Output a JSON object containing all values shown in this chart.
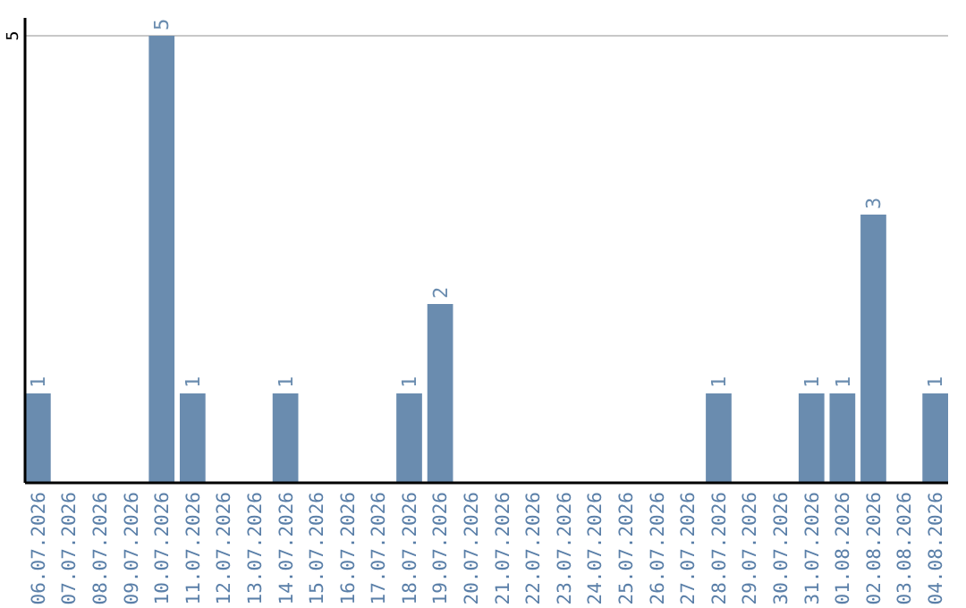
{
  "chart_data": {
    "type": "bar",
    "categories": [
      "06.07.2026",
      "07.07.2026",
      "08.07.2026",
      "09.07.2026",
      "10.07.2026",
      "11.07.2026",
      "12.07.2026",
      "13.07.2026",
      "14.07.2026",
      "15.07.2026",
      "16.07.2026",
      "17.07.2026",
      "18.07.2026",
      "19.07.2026",
      "20.07.2026",
      "21.07.2026",
      "22.07.2026",
      "23.07.2026",
      "24.07.2026",
      "25.07.2026",
      "26.07.2026",
      "27.07.2026",
      "28.07.2026",
      "29.07.2026",
      "30.07.2026",
      "31.07.2026",
      "01.08.2026",
      "02.08.2026",
      "03.08.2026",
      "04.08.2026"
    ],
    "values": [
      1,
      0,
      0,
      0,
      5,
      1,
      0,
      0,
      1,
      0,
      0,
      0,
      1,
      2,
      0,
      0,
      0,
      0,
      0,
      0,
      0,
      0,
      1,
      0,
      0,
      1,
      1,
      3,
      0,
      1
    ],
    "value_labels": [
      "1",
      null,
      null,
      null,
      "5",
      "1",
      null,
      null,
      "1",
      null,
      null,
      null,
      "1",
      "2",
      null,
      null,
      null,
      null,
      null,
      null,
      null,
      null,
      "1",
      null,
      null,
      "1",
      "1",
      "3",
      null,
      "1"
    ],
    "color": "#6a8caf",
    "ylim": [
      0,
      5.2
    ],
    "yticks": [
      5
    ],
    "grid": "y"
  }
}
